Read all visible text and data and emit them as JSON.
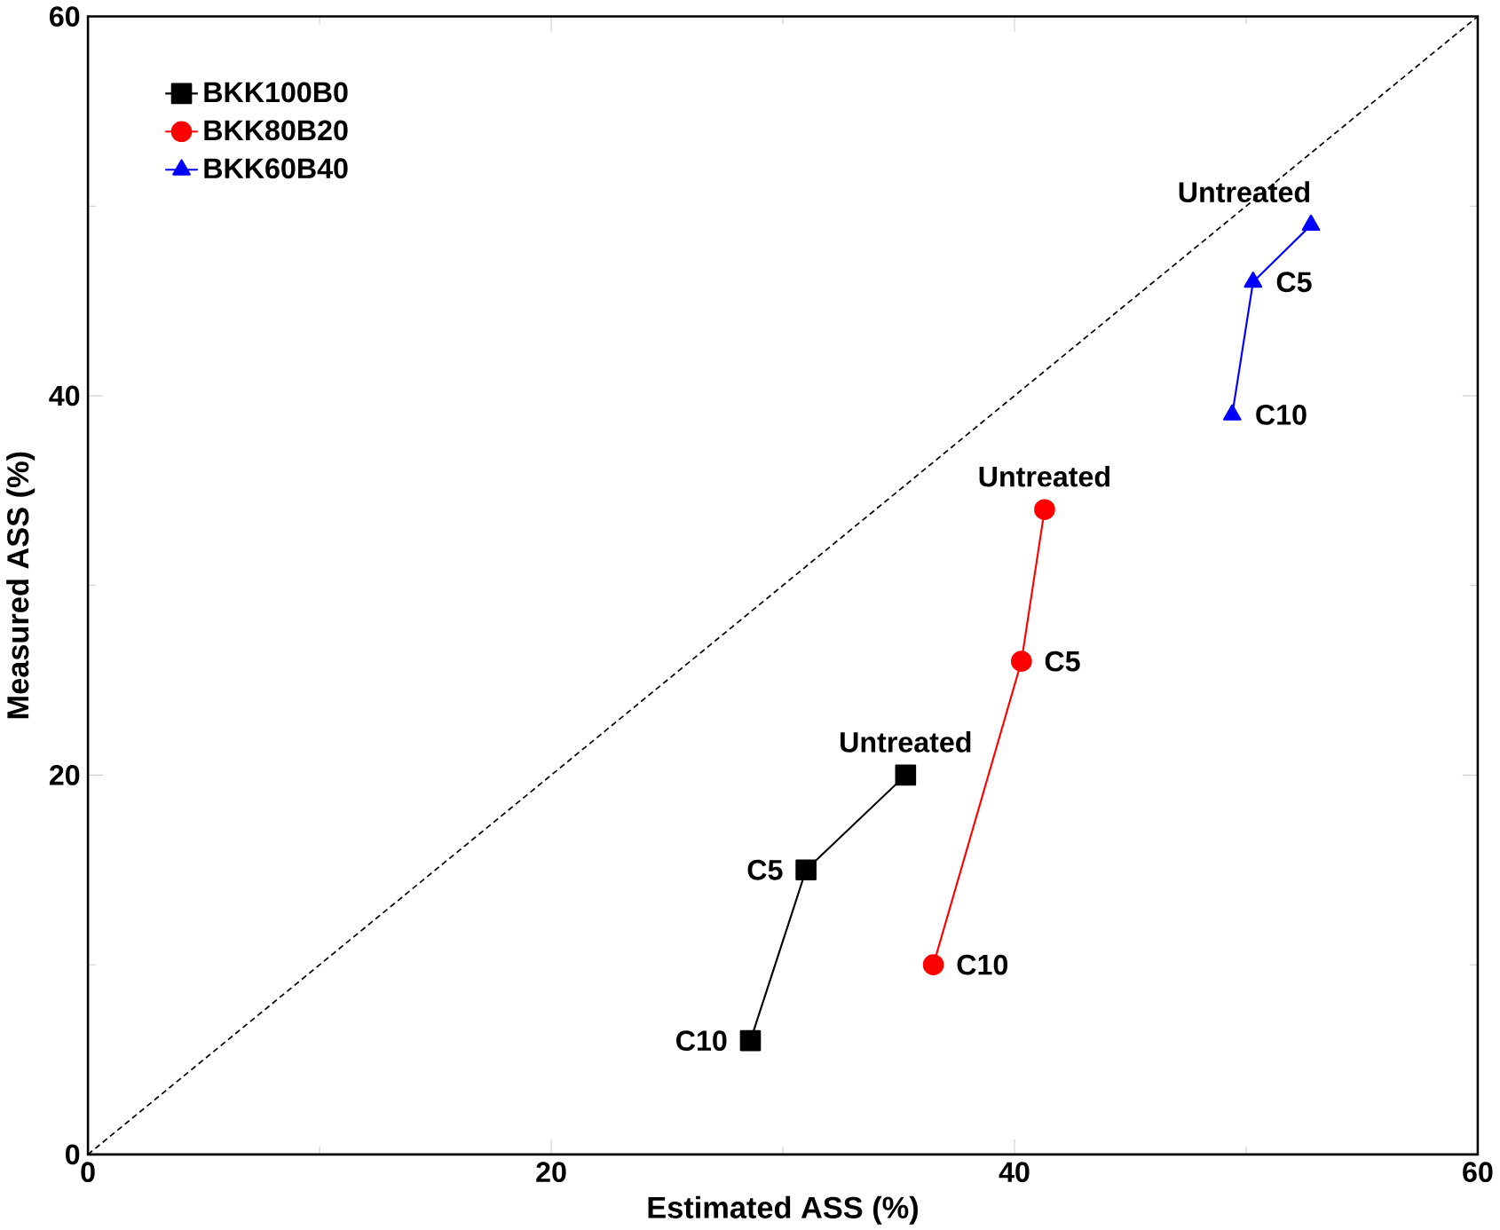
{
  "chart_data": {
    "type": "line",
    "xlabel": "Estimated ASS (%)",
    "ylabel": "Measured ASS (%)",
    "xlim": [
      0,
      60
    ],
    "ylim": [
      0,
      60
    ],
    "xticks": [
      0,
      20,
      40,
      60
    ],
    "yticks": [
      0,
      20,
      40,
      60
    ],
    "grid": false,
    "legend": "top left",
    "series": [
      {
        "name": "BKK100B0",
        "color": "#000000",
        "marker": "square",
        "x": [
          28.6,
          31.0,
          35.3
        ],
        "values": [
          6,
          15,
          20
        ]
      },
      {
        "name": "BKK80B20",
        "color": "#ff0000",
        "marker": "circle",
        "x": [
          36.5,
          40.3,
          41.3
        ],
        "values": [
          10,
          26,
          34
        ]
      },
      {
        "name": "BKK60B40",
        "color": "#0000ff",
        "marker": "triangle",
        "x": [
          49.4,
          50.3,
          52.8
        ],
        "values": [
          39,
          46,
          49
        ]
      },
      {
        "color": "#000000",
        "marker": "none",
        "line_style": "dotted",
        "x": [
          0,
          60
        ],
        "values": [
          0,
          60
        ]
      }
    ],
    "annotations": [
      {
        "text": "C10",
        "x": 28.6,
        "y": 6
      },
      {
        "text": "C5",
        "x": 31.0,
        "y": 15
      },
      {
        "text": "Untreated",
        "x": 35.3,
        "y": 20
      },
      {
        "text": "C10",
        "x": 36.5,
        "y": 10
      },
      {
        "text": "C5",
        "x": 40.3,
        "y": 26
      },
      {
        "text": "Untreated",
        "x": 41.3,
        "y": 34
      },
      {
        "text": "C10",
        "x": 49.4,
        "y": 39
      },
      {
        "text": "C5",
        "x": 50.3,
        "y": 46
      },
      {
        "text": "Untreated",
        "x": 52.8,
        "y": 49
      }
    ]
  }
}
